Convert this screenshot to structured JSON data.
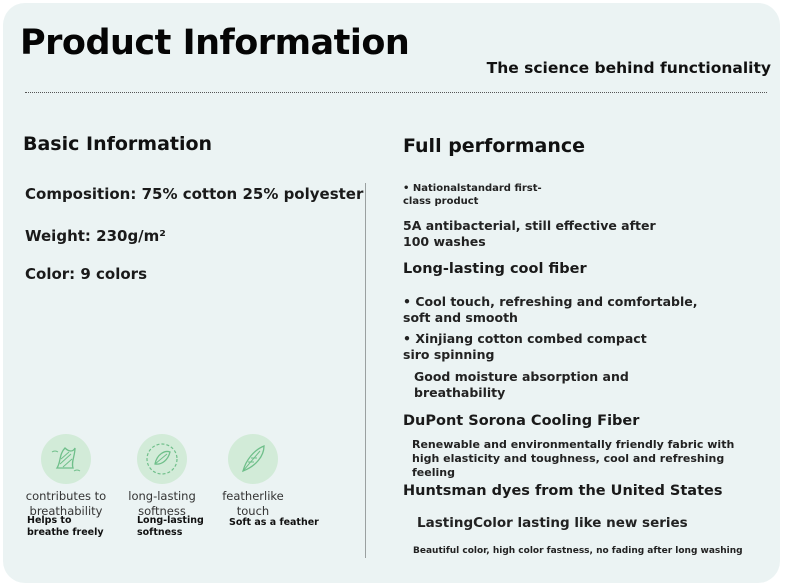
{
  "header": {
    "title": "Product Information",
    "subtitle": "The science behind functionality"
  },
  "basic": {
    "heading": "Basic Information",
    "composition": "Composition: 75% cotton 25% polyester",
    "weight": "Weight: 230g/m²",
    "color": "Color: 9 colors"
  },
  "features": [
    {
      "icon": "breathable-fabric-icon",
      "caption": "contributes to breathability",
      "subcaption": "Helps to breathe freely"
    },
    {
      "icon": "softness-leaf-icon",
      "caption": "long-lasting softness",
      "subcaption": "Long-lasting softness"
    },
    {
      "icon": "feather-icon",
      "caption": "featherlike touch",
      "subcaption": "Soft as a feather"
    }
  ],
  "performance": {
    "heading": "Full performance",
    "national_standard": "• Nationalstandard first-class product",
    "antibacterial": "5A antibacterial, still effective after 100 washes",
    "cool_fiber_heading": "Long-lasting cool fiber",
    "cool_touch": "• Cool touch, refreshing and comfortable, soft and smooth",
    "xinjiang": "• Xinjiang cotton combed compact siro spinning",
    "moisture": "Good moisture absorption and breathability",
    "dupont_heading": "DuPont Sorona Cooling Fiber",
    "dupont_desc": "Renewable and environmentally friendly fabric with high elasticity and toughness, cool and refreshing feeling",
    "huntsman_heading": "Huntsman dyes from the United States",
    "lastingcolor": "LastingColor lasting like new series",
    "color_fastness": "Beautiful color, high color fastness, no fading after long washing"
  },
  "colors": {
    "background": "#ebf3f3",
    "icon_circle": "#d2ebd8",
    "icon_stroke": "#6fbf8a"
  }
}
